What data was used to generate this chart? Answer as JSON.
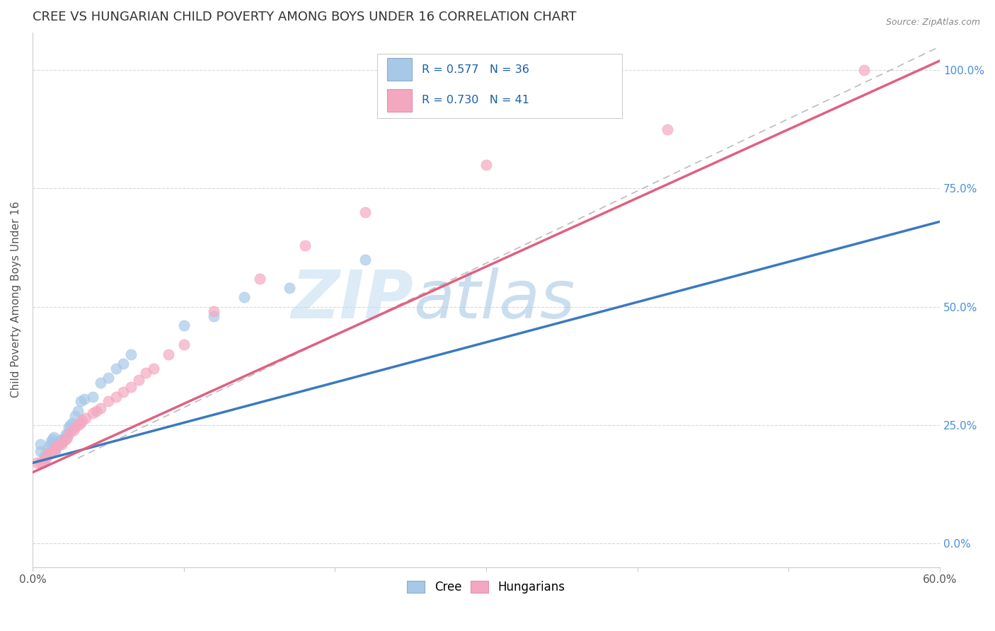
{
  "title": "CREE VS HUNGARIAN CHILD POVERTY AMONG BOYS UNDER 16 CORRELATION CHART",
  "source": "Source: ZipAtlas.com",
  "ylabel": "Child Poverty Among Boys Under 16",
  "x_min": 0.0,
  "x_max": 0.6,
  "y_min": -0.05,
  "y_max": 1.08,
  "cree_R": 0.577,
  "cree_N": 36,
  "hung_R": 0.73,
  "hung_N": 41,
  "cree_color": "#a8c8e8",
  "hung_color": "#f4a8c0",
  "cree_line_color": "#3a7abf",
  "hung_line_color": "#e06080",
  "ref_line_color": "#bbbbbb",
  "watermark_color": "#d0e8f8",
  "cree_x": [
    0.005,
    0.005,
    0.008,
    0.01,
    0.01,
    0.012,
    0.012,
    0.013,
    0.014,
    0.015,
    0.015,
    0.016,
    0.017,
    0.018,
    0.019,
    0.02,
    0.022,
    0.023,
    0.024,
    0.025,
    0.026,
    0.028,
    0.03,
    0.032,
    0.034,
    0.04,
    0.045,
    0.05,
    0.055,
    0.06,
    0.065,
    0.1,
    0.12,
    0.14,
    0.17,
    0.22
  ],
  "cree_y": [
    0.195,
    0.21,
    0.185,
    0.19,
    0.2,
    0.21,
    0.215,
    0.22,
    0.225,
    0.195,
    0.2,
    0.21,
    0.21,
    0.215,
    0.22,
    0.22,
    0.23,
    0.23,
    0.245,
    0.25,
    0.255,
    0.27,
    0.28,
    0.3,
    0.305,
    0.31,
    0.34,
    0.35,
    0.37,
    0.38,
    0.4,
    0.46,
    0.48,
    0.52,
    0.54,
    0.6
  ],
  "hung_x": [
    0.003,
    0.005,
    0.007,
    0.008,
    0.009,
    0.01,
    0.012,
    0.013,
    0.015,
    0.016,
    0.018,
    0.019,
    0.02,
    0.022,
    0.023,
    0.025,
    0.027,
    0.028,
    0.03,
    0.032,
    0.033,
    0.035,
    0.04,
    0.042,
    0.045,
    0.05,
    0.055,
    0.06,
    0.065,
    0.07,
    0.075,
    0.08,
    0.09,
    0.1,
    0.12,
    0.15,
    0.18,
    0.22,
    0.3,
    0.42,
    0.55
  ],
  "hung_y": [
    0.17,
    0.17,
    0.17,
    0.18,
    0.18,
    0.19,
    0.19,
    0.195,
    0.2,
    0.205,
    0.21,
    0.21,
    0.215,
    0.22,
    0.225,
    0.235,
    0.24,
    0.245,
    0.25,
    0.255,
    0.26,
    0.265,
    0.275,
    0.28,
    0.285,
    0.3,
    0.31,
    0.32,
    0.33,
    0.345,
    0.36,
    0.37,
    0.4,
    0.42,
    0.49,
    0.56,
    0.63,
    0.7,
    0.8,
    0.875,
    1.0
  ],
  "cree_line_x": [
    0.0,
    0.6
  ],
  "cree_line_y": [
    0.17,
    0.68
  ],
  "hung_line_x": [
    0.0,
    0.6
  ],
  "hung_line_y": [
    0.15,
    1.02
  ],
  "ref_line_x": [
    0.03,
    0.6
  ],
  "ref_line_y": [
    0.18,
    1.05
  ],
  "title_fontsize": 13,
  "label_fontsize": 11,
  "tick_fontsize": 11,
  "legend_fontsize": 12,
  "source_fontsize": 9
}
